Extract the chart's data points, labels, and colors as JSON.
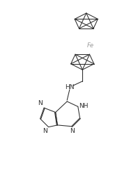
{
  "bg_color": "#ffffff",
  "line_color": "#2a2a2a",
  "fe_color": "#999999",
  "figsize": [
    1.85,
    2.79
  ],
  "dpi": 100,
  "xlim": [
    0,
    10
  ],
  "ylim": [
    0,
    15
  ]
}
